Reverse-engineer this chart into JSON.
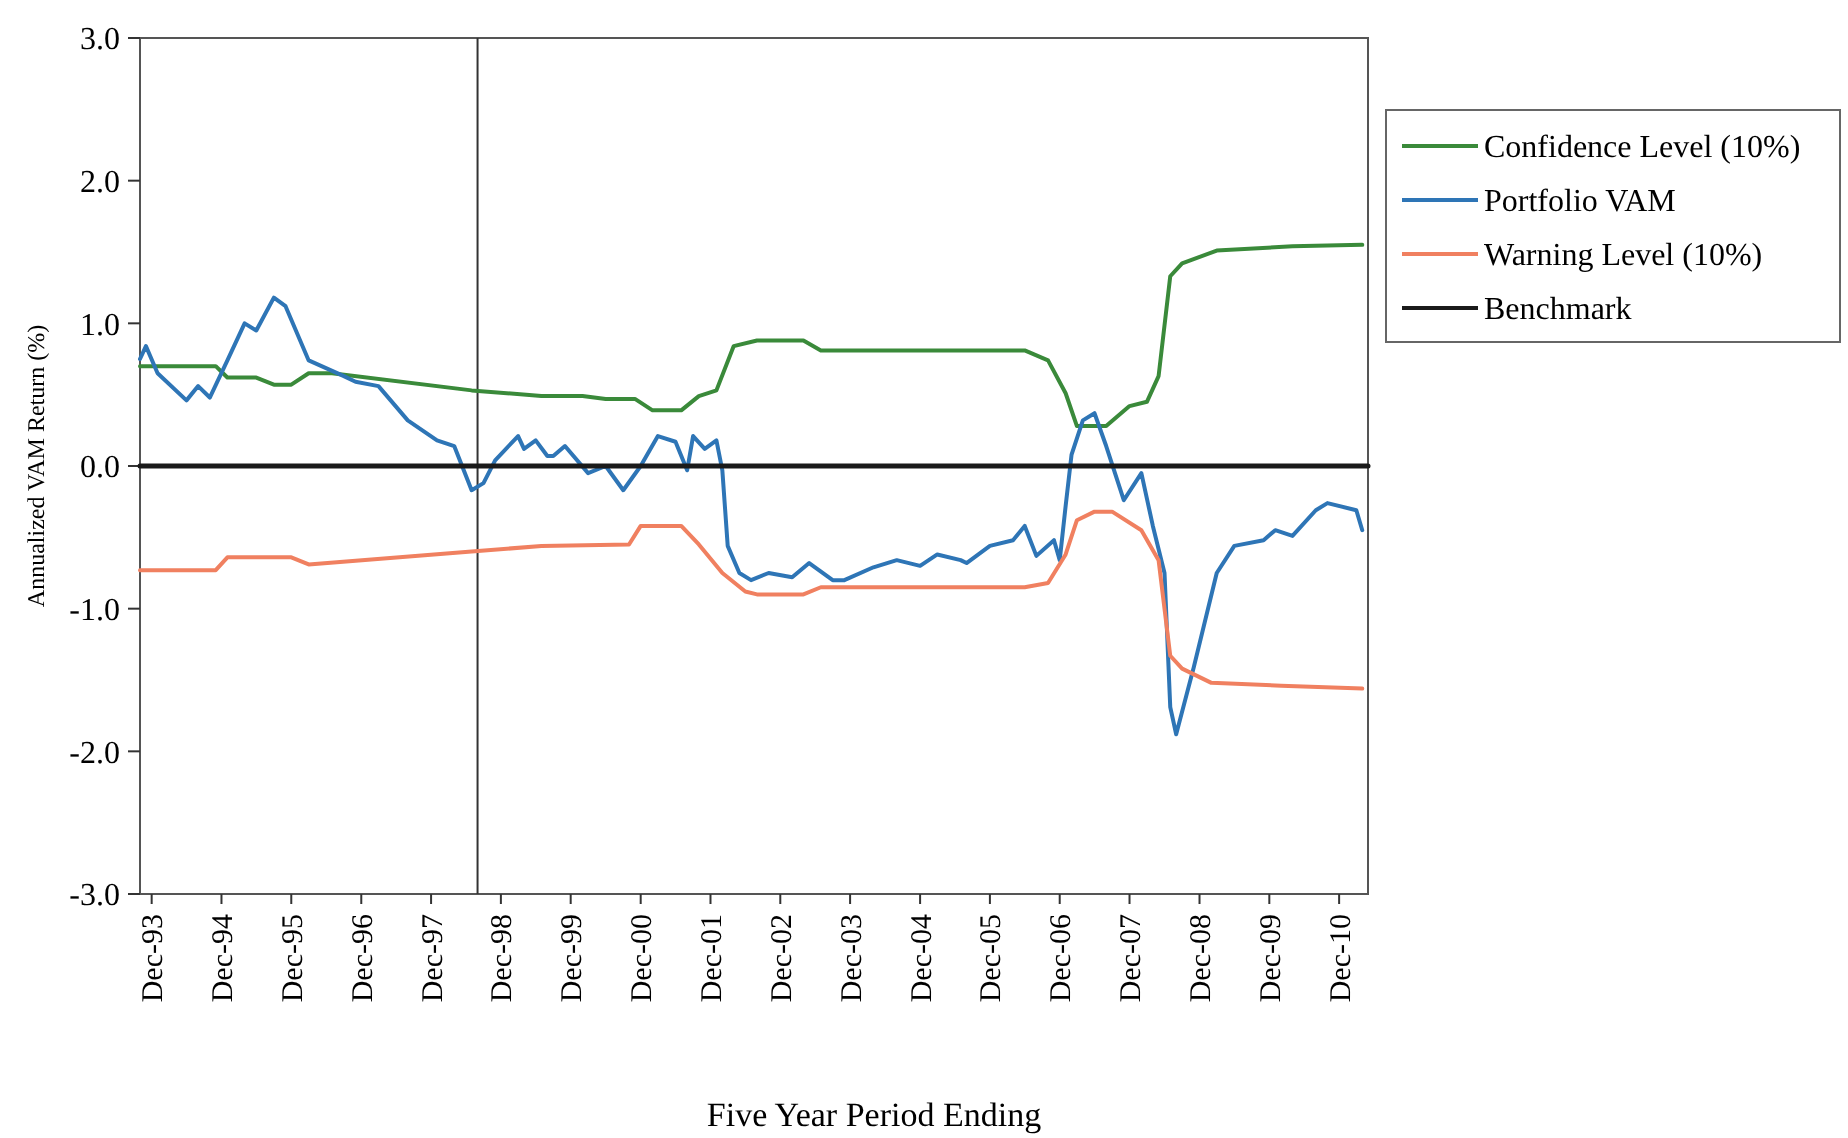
{
  "chart_data": {
    "type": "line",
    "xlabel": "Five Year Period Ending",
    "ylabel": "Annualized VAM Return (%)",
    "xlim": [
      "1993-10",
      "2011-05"
    ],
    "xticks": [
      {
        "value": "1993-12",
        "label": "Dec-93"
      },
      {
        "value": "1994-12",
        "label": "Dec-94"
      },
      {
        "value": "1995-12",
        "label": "Dec-95"
      },
      {
        "value": "1996-12",
        "label": "Dec-96"
      },
      {
        "value": "1997-12",
        "label": "Dec-97"
      },
      {
        "value": "1998-12",
        "label": "Dec-98"
      },
      {
        "value": "1999-12",
        "label": "Dec-99"
      },
      {
        "value": "2000-12",
        "label": "Dec-00"
      },
      {
        "value": "2001-12",
        "label": "Dec-01"
      },
      {
        "value": "2002-12",
        "label": "Dec-02"
      },
      {
        "value": "2003-12",
        "label": "Dec-03"
      },
      {
        "value": "2004-12",
        "label": "Dec-04"
      },
      {
        "value": "2005-12",
        "label": "Dec-05"
      },
      {
        "value": "2006-12",
        "label": "Dec-06"
      },
      {
        "value": "2007-12",
        "label": "Dec-07"
      },
      {
        "value": "2008-12",
        "label": "Dec-08"
      },
      {
        "value": "2009-12",
        "label": "Dec-09"
      },
      {
        "value": "2010-12",
        "label": "Dec-10"
      }
    ],
    "ylim": [
      -3,
      3
    ],
    "yticks": [
      {
        "value": -3,
        "label": "-3.0"
      },
      {
        "value": -2,
        "label": "-2.0"
      },
      {
        "value": -1,
        "label": "-1.0"
      },
      {
        "value": 0,
        "label": "0.0"
      },
      {
        "value": 1,
        "label": "1.0"
      },
      {
        "value": 2,
        "label": "2.0"
      },
      {
        "value": 3,
        "label": "3.0"
      }
    ],
    "grid": false,
    "legend": "right",
    "marker": "none",
    "line_style": "solid",
    "ref_lines": [
      {
        "axis": "x",
        "value": "1998-08",
        "color": "#333333"
      }
    ],
    "series": [
      {
        "name": "Confidence Level (10%)",
        "color": "#3a8a3a",
        "x": [
          "1993-10",
          "1994-11",
          "1995-01",
          "1995-06",
          "1995-09",
          "1995-12",
          "1996-03",
          "1996-07",
          "1998-07",
          "1999-07",
          "2000-02",
          "2000-06",
          "2000-11",
          "2001-02",
          "2001-07",
          "2001-10",
          "2002-01",
          "2002-04",
          "2002-08",
          "2003-04",
          "2003-07",
          "2006-06",
          "2006-10",
          "2007-01",
          "2007-03",
          "2007-08",
          "2007-12",
          "2008-03",
          "2008-05",
          "2008-07",
          "2008-09",
          "2009-03",
          "2010-04",
          "2011-04"
        ],
        "values": [
          0.7,
          0.7,
          0.62,
          0.62,
          0.57,
          0.57,
          0.65,
          0.65,
          0.53,
          0.49,
          0.49,
          0.47,
          0.47,
          0.39,
          0.39,
          0.49,
          0.53,
          0.84,
          0.88,
          0.88,
          0.81,
          0.81,
          0.74,
          0.51,
          0.28,
          0.28,
          0.42,
          0.45,
          0.63,
          1.33,
          1.42,
          1.51,
          1.54,
          1.55
        ]
      },
      {
        "name": "Portfolio VAM",
        "color": "#2e75b6",
        "x": [
          "1993-10",
          "1993-11",
          "1994-01",
          "1994-06",
          "1994-08",
          "1994-10",
          "1995-01",
          "1995-04",
          "1995-06",
          "1995-09",
          "1995-11",
          "1996-03",
          "1996-09",
          "1996-11",
          "1997-03",
          "1997-08",
          "1998-01",
          "1998-04",
          "1998-07",
          "1998-09",
          "1998-11",
          "1999-03",
          "1999-04",
          "1999-06",
          "1999-08",
          "1999-09",
          "1999-11",
          "2000-03",
          "2000-06",
          "2000-09",
          "2000-12",
          "2001-03",
          "2001-06",
          "2001-08",
          "2001-09",
          "2001-11",
          "2002-01",
          "2002-02",
          "2002-03",
          "2002-05",
          "2002-07",
          "2002-10",
          "2003-02",
          "2003-05",
          "2003-09",
          "2003-11",
          "2004-04",
          "2004-08",
          "2004-12",
          "2005-03",
          "2005-07",
          "2005-08",
          "2005-12",
          "2006-04",
          "2006-06",
          "2006-08",
          "2006-11",
          "2006-12",
          "2007-01",
          "2007-02",
          "2007-04",
          "2007-06",
          "2007-08",
          "2007-11",
          "2008-02",
          "2008-04",
          "2008-06",
          "2008-07",
          "2008-08",
          "2008-11",
          "2009-03",
          "2009-06",
          "2009-11",
          "2010-01",
          "2010-04",
          "2010-08",
          "2010-10",
          "2011-03",
          "2011-04"
        ],
        "values": [
          0.75,
          0.84,
          0.65,
          0.46,
          0.56,
          0.48,
          0.74,
          1.0,
          0.95,
          1.18,
          1.12,
          0.74,
          0.63,
          0.59,
          0.56,
          0.32,
          0.18,
          0.14,
          -0.17,
          -0.12,
          0.04,
          0.21,
          0.12,
          0.18,
          0.07,
          0.07,
          0.14,
          -0.05,
          0.0,
          -0.17,
          0.0,
          0.21,
          0.17,
          -0.03,
          0.21,
          0.12,
          0.18,
          -0.03,
          -0.56,
          -0.75,
          -0.8,
          -0.75,
          -0.78,
          -0.68,
          -0.8,
          -0.8,
          -0.71,
          -0.66,
          -0.7,
          -0.62,
          -0.66,
          -0.68,
          -0.56,
          -0.52,
          -0.42,
          -0.63,
          -0.52,
          -0.66,
          -0.28,
          0.08,
          0.32,
          0.37,
          0.14,
          -0.24,
          -0.05,
          -0.42,
          -0.75,
          -1.69,
          -1.88,
          -1.41,
          -0.75,
          -0.56,
          -0.52,
          -0.45,
          -0.49,
          -0.31,
          -0.26,
          -0.31,
          -0.45
        ]
      },
      {
        "name": "Warning Level (10%)",
        "color": "#f08060",
        "x": [
          "1993-10",
          "1994-11",
          "1995-01",
          "1995-12",
          "1996-03",
          "1998-07",
          "1999-07",
          "2000-10",
          "2000-12",
          "2001-07",
          "2001-10",
          "2002-02",
          "2002-06",
          "2002-08",
          "2003-04",
          "2003-07",
          "2006-06",
          "2006-10",
          "2007-01",
          "2007-03",
          "2007-06",
          "2007-09",
          "2008-02",
          "2008-05",
          "2008-07",
          "2008-09",
          "2009-02",
          "2010-02",
          "2011-04"
        ],
        "values": [
          -0.73,
          -0.73,
          -0.64,
          -0.64,
          -0.69,
          -0.6,
          -0.56,
          -0.55,
          -0.42,
          -0.42,
          -0.55,
          -0.75,
          -0.88,
          -0.9,
          -0.9,
          -0.85,
          -0.85,
          -0.82,
          -0.62,
          -0.38,
          -0.32,
          -0.32,
          -0.45,
          -0.66,
          -1.33,
          -1.42,
          -1.52,
          -1.54,
          -1.56
        ]
      },
      {
        "name": "Benchmark",
        "color": "#1a1a1a",
        "x": [
          "1993-10",
          "2011-05"
        ],
        "values": [
          0,
          0
        ]
      }
    ]
  }
}
